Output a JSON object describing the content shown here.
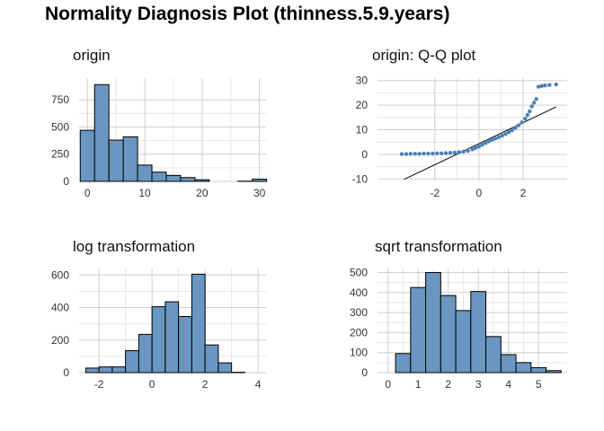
{
  "title": "Normality Diagnosis Plot (thinness.5.9.years)",
  "colors": {
    "bar_fill": "#6a96c1",
    "bar_stroke": "#000000",
    "point": "#4a7fb5",
    "line": "#000000",
    "grid": "#cfcfcf"
  },
  "chart_data": [
    {
      "type": "bar",
      "title": "origin",
      "xlim": [
        -1.45,
        31.15
      ],
      "ylim": [
        0,
        950
      ],
      "xticks": [
        0,
        10,
        20,
        30
      ],
      "yticks": [
        0,
        250,
        500,
        750
      ],
      "bins": [
        {
          "x0": -1.25,
          "x1": 1.25,
          "value": 470
        },
        {
          "x0": 1.25,
          "x1": 3.75,
          "value": 890
        },
        {
          "x0": 3.75,
          "x1": 6.25,
          "value": 380
        },
        {
          "x0": 6.25,
          "x1": 8.75,
          "value": 410
        },
        {
          "x0": 8.75,
          "x1": 11.25,
          "value": 150
        },
        {
          "x0": 11.25,
          "x1": 13.75,
          "value": 85
        },
        {
          "x0": 13.75,
          "x1": 16.25,
          "value": 55
        },
        {
          "x0": 16.25,
          "x1": 18.75,
          "value": 35
        },
        {
          "x0": 18.75,
          "x1": 21.25,
          "value": 15
        },
        {
          "x0": 21.25,
          "x1": 23.75,
          "value": 0
        },
        {
          "x0": 23.75,
          "x1": 26.25,
          "value": 0
        },
        {
          "x0": 26.25,
          "x1": 28.75,
          "value": 2
        },
        {
          "x0": 28.75,
          "x1": 31.25,
          "value": 20
        }
      ]
    },
    {
      "type": "scatter",
      "title": "origin: Q-Q plot",
      "xlim": [
        -4.6,
        4.0
      ],
      "ylim": [
        -11,
        31
      ],
      "xticks": [
        -2,
        0,
        2
      ],
      "yticks": [
        -10,
        0,
        10,
        20,
        30
      ],
      "reference_line": {
        "x": [
          -3.4,
          3.5
        ],
        "y": [
          -10.2,
          19.3
        ]
      },
      "points": [
        [
          -3.5,
          0.1
        ],
        [
          -3.3,
          0.1
        ],
        [
          -3.1,
          0.2
        ],
        [
          -2.9,
          0.2
        ],
        [
          -2.7,
          0.2
        ],
        [
          -2.5,
          0.3
        ],
        [
          -2.3,
          0.3
        ],
        [
          -2.1,
          0.3
        ],
        [
          -1.9,
          0.4
        ],
        [
          -1.7,
          0.4
        ],
        [
          -1.5,
          0.5
        ],
        [
          -1.3,
          0.6
        ],
        [
          -1.1,
          0.7
        ],
        [
          -0.9,
          0.9
        ],
        [
          -0.7,
          1.1
        ],
        [
          -0.5,
          1.4
        ],
        [
          -0.3,
          2.0
        ],
        [
          -0.15,
          2.6
        ],
        [
          0.0,
          3.2
        ],
        [
          0.15,
          3.9
        ],
        [
          0.3,
          4.6
        ],
        [
          0.45,
          5.3
        ],
        [
          0.6,
          5.9
        ],
        [
          0.75,
          6.4
        ],
        [
          0.9,
          7.0
        ],
        [
          1.05,
          7.6
        ],
        [
          1.2,
          8.3
        ],
        [
          1.35,
          9.0
        ],
        [
          1.5,
          9.8
        ],
        [
          1.65,
          10.7
        ],
        [
          1.8,
          11.8
        ],
        [
          1.95,
          13.0
        ],
        [
          2.1,
          14.5
        ],
        [
          2.2,
          16.0
        ],
        [
          2.3,
          17.5
        ],
        [
          2.4,
          19.5
        ],
        [
          2.5,
          21.0
        ],
        [
          2.6,
          22.5
        ],
        [
          2.7,
          27.5
        ],
        [
          2.85,
          27.8
        ],
        [
          3.0,
          28.0
        ],
        [
          3.2,
          28.2
        ],
        [
          3.5,
          28.4
        ]
      ]
    },
    {
      "type": "bar",
      "title": "log transformation",
      "xlim": [
        -2.75,
        4.3
      ],
      "ylim": [
        0,
        640
      ],
      "xticks": [
        -2,
        0,
        2,
        4
      ],
      "yticks": [
        0,
        200,
        400,
        600
      ],
      "bins": [
        {
          "x0": -2.5,
          "x1": -2.0,
          "value": 28
        },
        {
          "x0": -2.0,
          "x1": -1.5,
          "value": 35
        },
        {
          "x0": -1.5,
          "x1": -1.0,
          "value": 35
        },
        {
          "x0": -1.0,
          "x1": -0.5,
          "value": 135
        },
        {
          "x0": -0.5,
          "x1": 0.0,
          "value": 235
        },
        {
          "x0": 0.0,
          "x1": 0.5,
          "value": 405
        },
        {
          "x0": 0.5,
          "x1": 1.0,
          "value": 435
        },
        {
          "x0": 1.0,
          "x1": 1.5,
          "value": 345
        },
        {
          "x0": 1.5,
          "x1": 2.0,
          "value": 605
        },
        {
          "x0": 2.0,
          "x1": 2.5,
          "value": 170
        },
        {
          "x0": 2.5,
          "x1": 3.0,
          "value": 60
        },
        {
          "x0": 3.0,
          "x1": 3.5,
          "value": 2
        }
      ]
    },
    {
      "type": "bar",
      "title": "sqrt transformation",
      "xlim": [
        -0.35,
        5.95
      ],
      "ylim": [
        0,
        520
      ],
      "xticks": [
        0,
        1,
        2,
        3,
        4,
        5
      ],
      "yticks": [
        0,
        100,
        200,
        300,
        400,
        500
      ],
      "bins": [
        {
          "x0": 0.25,
          "x1": 0.75,
          "value": 95
        },
        {
          "x0": 0.75,
          "x1": 1.25,
          "value": 425
        },
        {
          "x0": 1.25,
          "x1": 1.75,
          "value": 500
        },
        {
          "x0": 1.75,
          "x1": 2.25,
          "value": 385
        },
        {
          "x0": 2.25,
          "x1": 2.75,
          "value": 310
        },
        {
          "x0": 2.75,
          "x1": 3.25,
          "value": 405
        },
        {
          "x0": 3.25,
          "x1": 3.75,
          "value": 180
        },
        {
          "x0": 3.75,
          "x1": 4.25,
          "value": 90
        },
        {
          "x0": 4.25,
          "x1": 4.75,
          "value": 50
        },
        {
          "x0": 4.75,
          "x1": 5.25,
          "value": 25
        },
        {
          "x0": 5.25,
          "x1": 5.75,
          "value": 10
        }
      ]
    }
  ]
}
